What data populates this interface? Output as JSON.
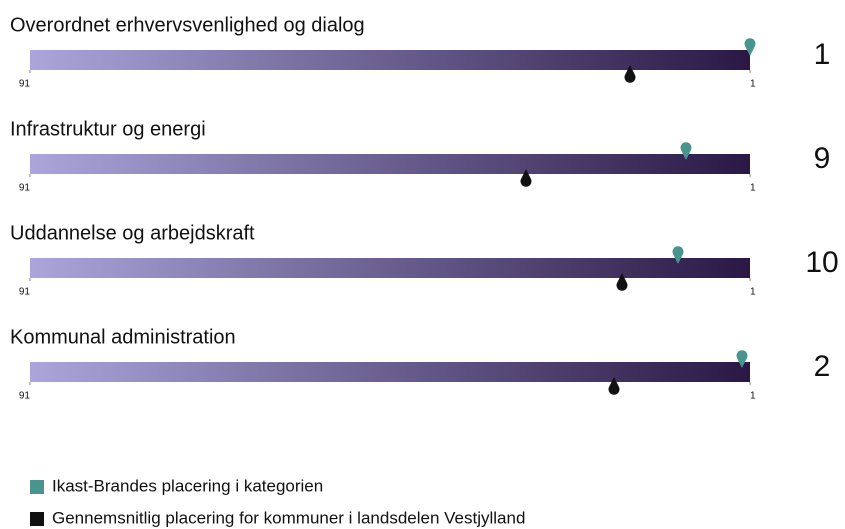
{
  "chart_data": {
    "type": "rank",
    "categories": [
      "Overordnet erhvervsvenlighed og dialog",
      "Infrastruktur og energi",
      "Uddannelse og arbejdskraft",
      "Kommunal administration"
    ],
    "series": [
      {
        "name": "Ikast-Brandes placering i kategorien",
        "color": "#4a9490",
        "values": [
          1,
          9,
          10,
          2
        ]
      },
      {
        "name": "Gennemsnitlig placering for kommuner i landsdelen Vestjylland",
        "color": "#111111",
        "values": [
          16,
          29,
          17,
          18
        ]
      }
    ],
    "xlim": [
      91,
      1
    ],
    "xticks": [
      91,
      1
    ],
    "bar_colors": [
      "#aaa6da",
      "#2a1744"
    ]
  }
}
